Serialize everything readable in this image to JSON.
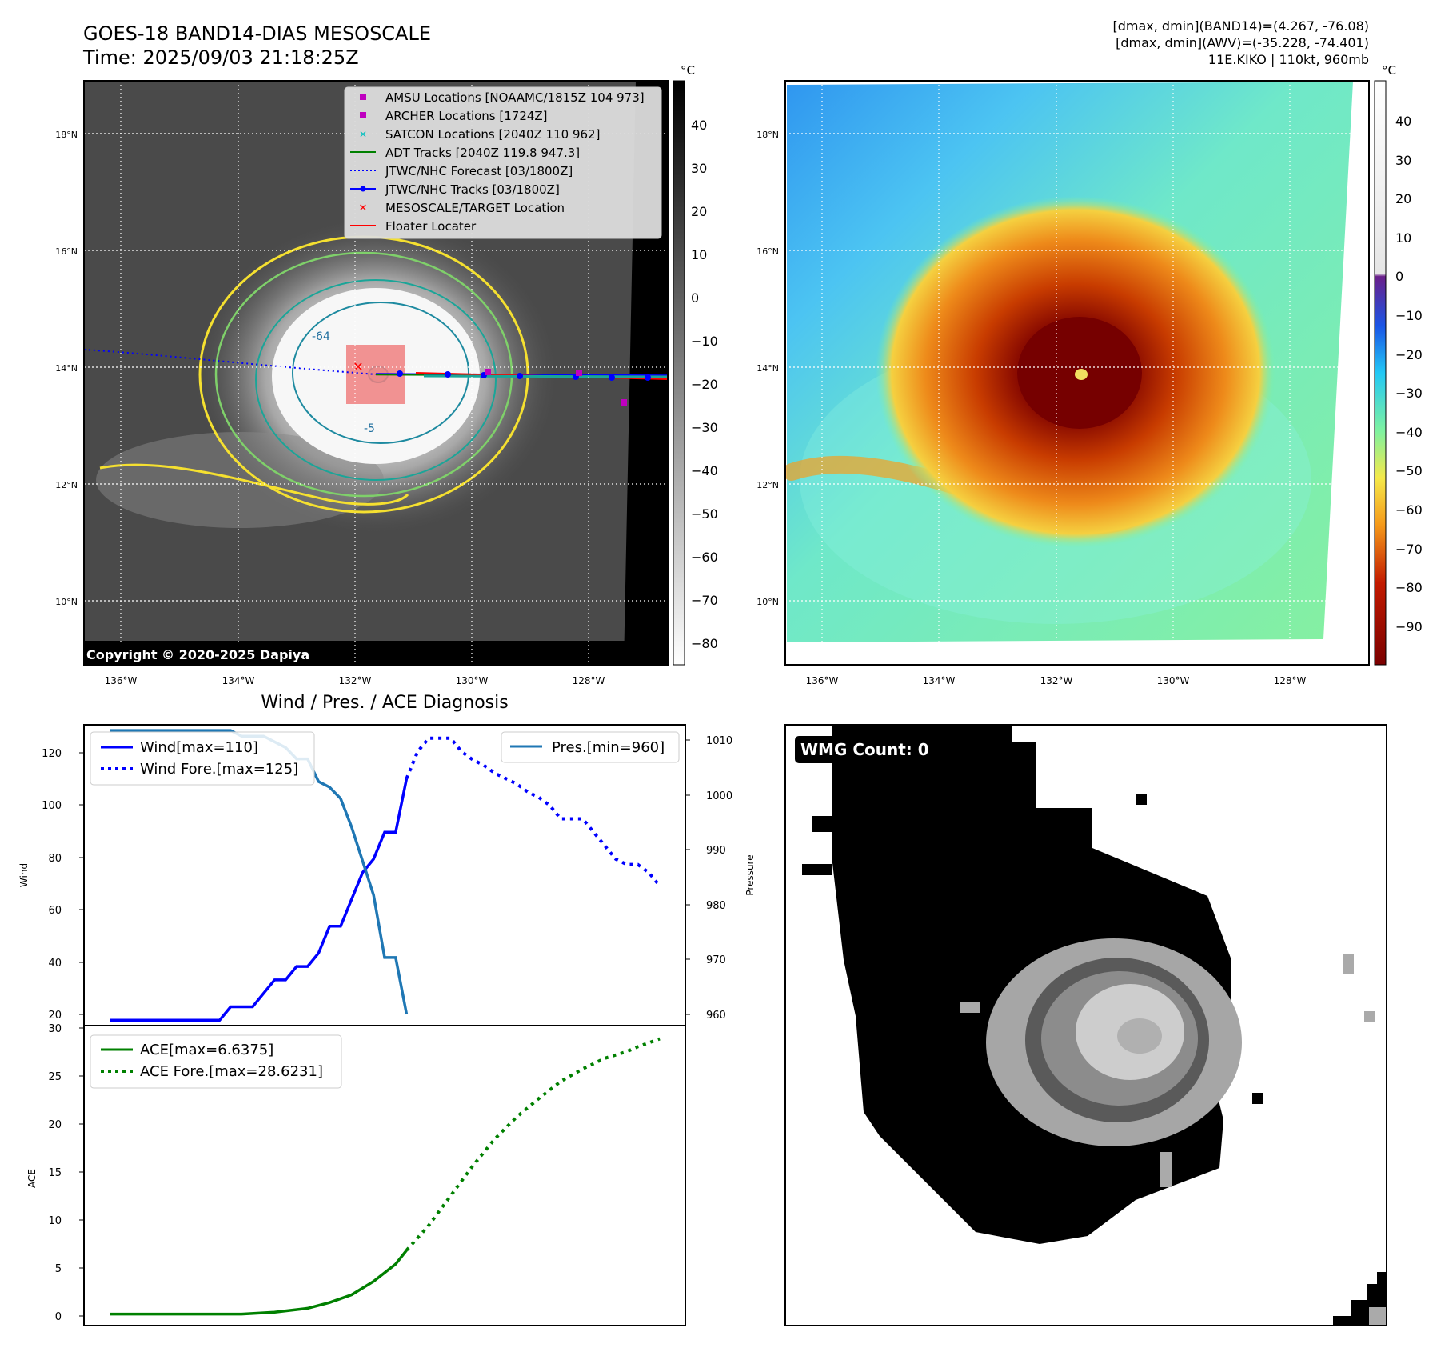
{
  "header": {
    "title_line1": "GOES-18 BAND14-DIAS MESOSCALE",
    "title_line2": "Time: 2025/09/03 21:18:25Z",
    "info_line1": "[dmax, dmin](BAND14)=(4.267, -76.08)",
    "info_line2": "[dmax, dmin](AWV)=(-35.228, -74.401)",
    "info_line3": "11E.KIKO | 110kt, 960mb"
  },
  "map_axes": {
    "lat_labels": [
      "18°N",
      "16°N",
      "14°N",
      "12°N",
      "10°N"
    ],
    "lon_labels": [
      "136°W",
      "134°W",
      "132°W",
      "130°W",
      "128°W"
    ]
  },
  "ir_panel": {
    "legend": [
      {
        "label": "AMSU Locations [NOAAMC/1815Z 104 973]",
        "marker": "square",
        "color": "#bf00bf"
      },
      {
        "label": "ARCHER Locations [1724Z]",
        "marker": "square",
        "color": "#bf00bf"
      },
      {
        "label": "SATCON Locations [2040Z 110 962]",
        "marker": "x",
        "color": "#00bfbf"
      },
      {
        "label": "ADT Tracks [2040Z 119.8 947.3]",
        "marker": "line",
        "color": "#008000"
      },
      {
        "label": "JTWC/NHC Forecast [03/1800Z]",
        "marker": "dotted",
        "color": "#0000ff"
      },
      {
        "label": "JTWC/NHC Tracks [03/1800Z]",
        "marker": "line-dot",
        "color": "#0000ff"
      },
      {
        "label": "MESOSCALE/TARGET Location",
        "marker": "x",
        "color": "#ff0000"
      },
      {
        "label": "Floater Locater",
        "marker": "line",
        "color": "#ff0000"
      }
    ],
    "copyright": "Copyright © 2020-2025 Dapiya",
    "contour_labels": [
      "-64",
      "-5"
    ],
    "colorbar_unit": "°C",
    "colorbar_ticks": [
      "40",
      "30",
      "20",
      "10",
      "0",
      "−10",
      "−20",
      "−30",
      "−40",
      "−50",
      "−60",
      "−70",
      "−80"
    ]
  },
  "awv_panel": {
    "colorbar_unit": "°C",
    "colorbar_ticks": [
      "40",
      "30",
      "20",
      "10",
      "0",
      "−10",
      "−20",
      "−30",
      "−40",
      "−50",
      "−60",
      "−70",
      "−80",
      "−90"
    ],
    "colors": {
      "background": "#79f2a6",
      "cloud_warm": "#f5d033",
      "cloud_mid": "#e86a0e",
      "eye_wall": "#8b0000"
    }
  },
  "wind_panel": {
    "title": "Wind / Pres. / ACE Diagnosis",
    "ylabel_left": "Wind",
    "ylabel_right": "Pressure",
    "legend_left": [
      "Wind[max=110]",
      "Wind Fore.[max=125]"
    ],
    "legend_right": [
      "Pres.[min=960]"
    ],
    "left_ticks": [
      "120",
      "100",
      "80",
      "60",
      "40",
      "20"
    ],
    "right_ticks": [
      "1010",
      "1000",
      "990",
      "980",
      "970",
      "960"
    ]
  },
  "ace_panel": {
    "ylabel": "ACE",
    "legend": [
      "ACE[max=6.6375]",
      "ACE Fore.[max=28.6231]"
    ],
    "ticks": [
      "30",
      "25",
      "20",
      "15",
      "10",
      "5",
      "0"
    ]
  },
  "wmg_panel": {
    "label": "WMG Count: 0"
  },
  "chart_data": [
    {
      "type": "line",
      "title": "Wind / Pres. / ACE Diagnosis",
      "xlabel": "",
      "ylabel": "Wind",
      "ylim": [
        18,
        130
      ],
      "y2label": "Pressure",
      "y2lim": [
        958,
        1011
      ],
      "series": [
        {
          "name": "Wind[max=110]",
          "style": "solid",
          "color": "#0000ff",
          "axis": "left",
          "x": [
            0,
            1,
            2,
            3,
            4,
            5,
            6,
            7,
            8,
            9,
            10,
            11,
            12,
            13,
            14,
            15,
            16,
            17,
            18,
            19,
            20,
            21,
            22,
            23,
            24,
            25,
            26,
            27
          ],
          "values": [
            20,
            20,
            20,
            20,
            20,
            20,
            20,
            20,
            20,
            20,
            20,
            25,
            25,
            25,
            30,
            35,
            35,
            40,
            40,
            45,
            55,
            55,
            65,
            75,
            80,
            90,
            90,
            110
          ]
        },
        {
          "name": "Wind Fore.[max=125]",
          "style": "dotted",
          "color": "#0000ff",
          "axis": "left",
          "x": [
            27,
            28,
            29,
            30,
            31,
            32,
            33,
            34,
            35,
            36,
            37,
            38,
            39,
            40,
            41,
            42,
            43,
            44,
            45,
            46,
            47,
            48,
            49,
            50
          ],
          "values": [
            110,
            120,
            125,
            125,
            125,
            120,
            117,
            115,
            112,
            110,
            108,
            105,
            103,
            100,
            95,
            95,
            95,
            90,
            85,
            80,
            78,
            78,
            75,
            70
          ]
        },
        {
          "name": "Pres.[min=960]",
          "style": "solid",
          "color": "#1f77b4",
          "axis": "right",
          "x": [
            0,
            1,
            2,
            3,
            4,
            5,
            6,
            7,
            8,
            9,
            10,
            11,
            12,
            13,
            14,
            15,
            16,
            17,
            18,
            19,
            20,
            21,
            22,
            23,
            24,
            25,
            26,
            27
          ],
          "values": [
            1010,
            1010,
            1010,
            1010,
            1010,
            1010,
            1010,
            1010,
            1010,
            1010,
            1010,
            1010,
            1009,
            1009,
            1009,
            1008,
            1007,
            1005,
            1005,
            1001,
            1000,
            998,
            993,
            987,
            981,
            970,
            970,
            960
          ]
        }
      ]
    },
    {
      "type": "line",
      "title": "",
      "xlabel": "",
      "ylabel": "ACE",
      "ylim": [
        -1.2,
        30
      ],
      "series": [
        {
          "name": "ACE[max=6.6375]",
          "style": "solid",
          "color": "#008000",
          "x": [
            0,
            5,
            10,
            12,
            15,
            18,
            20,
            22,
            24,
            26,
            27
          ],
          "values": [
            0,
            0,
            0,
            0,
            0.2,
            0.6,
            1.2,
            2.0,
            3.4,
            5.2,
            6.6375
          ]
        },
        {
          "name": "ACE Fore.[max=28.6231]",
          "style": "dotted",
          "color": "#008000",
          "x": [
            27,
            29,
            31,
            33,
            35,
            37,
            39,
            41,
            43,
            45,
            47,
            48,
            50
          ],
          "values": [
            6.6375,
            9.2,
            12.3,
            15.4,
            18.2,
            20.5,
            22.4,
            24.2,
            25.5,
            26.6,
            27.3,
            27.8,
            28.6231
          ]
        }
      ]
    }
  ]
}
